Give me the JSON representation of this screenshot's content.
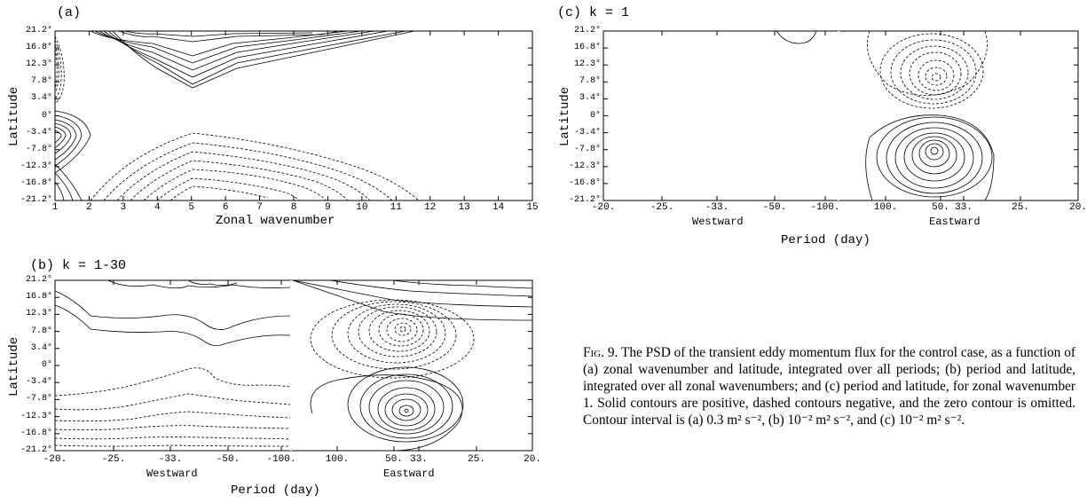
{
  "panels": {
    "a": {
      "label": "(a)",
      "ylabel": "Latitude",
      "xlabel": "Zonal wavenumber",
      "yticks": [
        "21.2°",
        "16.8°",
        "12.3°",
        "7.8°",
        "3.4°",
        "0°",
        "-3.4°",
        "-7.8°",
        "-12.3°",
        "-16.8°",
        "-21.2°"
      ],
      "xticks": [
        "1",
        "2",
        "3",
        "4",
        "5",
        "6",
        "7",
        "8",
        "9",
        "10",
        "11",
        "12",
        "13",
        "14",
        "15"
      ]
    },
    "b": {
      "label": "(b) k = 1-30",
      "ylabel": "Latitude",
      "xlabel": "Period (day)",
      "yticks": [
        "21.2°",
        "16.8°",
        "12.3°",
        "7.8°",
        "3.4°",
        "0°",
        "-3.4°",
        "-7.8°",
        "-12.3°",
        "-16.8°",
        "-21.2°"
      ],
      "xticks_west": [
        "-20.",
        "-25.",
        "-33.",
        "-50.",
        "-100."
      ],
      "xticks_east": [
        "100.",
        "50.",
        "33.",
        "25.",
        "20."
      ],
      "westward": "Westward",
      "eastward": "Eastward"
    },
    "c": {
      "label": "(c) k = 1",
      "ylabel": "Latitude",
      "xlabel": "Period (day)",
      "yticks": [
        "21.2°",
        "16.8°",
        "12.3°",
        "7.8°",
        "3.4°",
        "0°",
        "-3.4°",
        "-7.8°",
        "-12.3°",
        "-16.8°",
        "-21.2°"
      ],
      "xticks_west": [
        "-20.",
        "-25.",
        "-33.",
        "-50.",
        "-100."
      ],
      "xticks_east": [
        "100.",
        "50.",
        "33.",
        "25.",
        "20."
      ],
      "westward": "Westward",
      "eastward": "Eastward"
    }
  },
  "caption": {
    "fig": "Fig. 9.",
    "text": " The PSD of the transient eddy momentum flux for the control case, as a function of (a) zonal wavenumber and latitude, integrated over all periods; (b) period and latitude, integrated over all zonal wavenumbers; and (c) period and latitude, for zonal wavenumber 1. Solid contours are positive, dashed contours negative, and the zero contour is omitted. Contour interval is (a) 0.3 m² s⁻², (b) 10⁻² m² s⁻², and (c) 10⁻² m² s⁻²."
  }
}
